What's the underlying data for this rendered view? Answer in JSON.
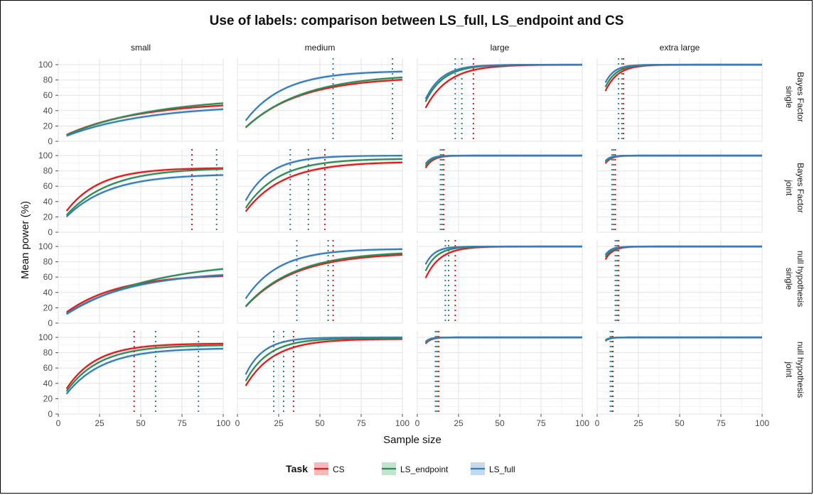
{
  "chart_data": {
    "type": "line",
    "title": "Use of labels: comparison between LS_full, LS_endpoint and CS",
    "xlabel": "Sample size",
    "ylabel": "Mean power (%)",
    "xlim": [
      0,
      100
    ],
    "ylim": [
      0,
      100
    ],
    "x_ticks": [
      0,
      25,
      50,
      75,
      100
    ],
    "y_ticks": [
      0,
      20,
      40,
      60,
      80,
      100
    ],
    "grid": true,
    "legend": {
      "title": "Task",
      "position": "bottom"
    },
    "columns": [
      "small",
      "medium",
      "large",
      "extra large"
    ],
    "rows": [
      {
        "label": "Bayes Factor\nsingle",
        "lines": [
          "Bayes Factor",
          "single"
        ]
      },
      {
        "label": "Bayes Factor\njoint",
        "lines": [
          "Bayes Factor",
          "joint"
        ]
      },
      {
        "label": "null hypothesis\nsingle",
        "lines": [
          "null hypothesis",
          "single"
        ]
      },
      {
        "label": "null hypothesis\njoint",
        "lines": [
          "null hypothesis",
          "joint"
        ]
      }
    ],
    "series": [
      {
        "name": "CS",
        "color": "#e41a1c",
        "fill": "#f4a6a7"
      },
      {
        "name": "LS_endpoint",
        "color": "#2e8b57",
        "fill": "#b3dcc2"
      },
      {
        "name": "LS_full",
        "color": "#377eb8",
        "fill": "#b4d0ea"
      }
    ],
    "x_start": 5,
    "panels": [
      [
        {
          "curves": {
            "CS": [
              52,
              45
            ],
            "LS_endpoint": [
              58,
              53
            ],
            "LS_full": [
              48,
              50
            ]
          },
          "vlines": {}
        },
        {
          "curves": {
            "CS": [
              84,
              33
            ],
            "LS_endpoint": [
              88,
              35
            ],
            "LS_full": [
              92,
              23
            ]
          },
          "vlines": {
            "LS_full": 58,
            "LS_endpoint": 94
          }
        },
        {
          "curves": {
            "CS": [
              100,
              14
            ],
            "LS_endpoint": [
              100,
              11
            ],
            "LS_full": [
              100,
              10
            ]
          },
          "vlines": {
            "LS_full": 23,
            "LS_endpoint": 27,
            "CS": 34
          }
        },
        {
          "curves": {
            "CS": [
              100,
              7.5
            ],
            "LS_endpoint": [
              100,
              6.5
            ],
            "LS_full": [
              100,
              5.5
            ]
          },
          "vlines": {
            "LS_full": 13,
            "LS_endpoint": 15,
            "CS": 16
          }
        }
      ],
      [
        {
          "curves": {
            "CS": [
              84,
              20
            ],
            "LS_endpoint": [
              84,
              26
            ],
            "LS_full": [
              76,
              26
            ]
          },
          "vlines": {
            "CS": 81,
            "LS_endpoint": 96
          }
        },
        {
          "curves": {
            "CS": [
              92,
              23
            ],
            "LS_endpoint": [
              96,
              20
            ],
            "LS_full": [
              100,
              15
            ]
          },
          "vlines": {
            "LS_full": 32,
            "LS_endpoint": 43,
            "CS": 53
          }
        },
        {
          "curves": {
            "CS": [
              100,
              4.4
            ],
            "LS_endpoint": [
              100,
              4
            ],
            "LS_full": [
              100,
              3.6
            ]
          },
          "vlines": {
            "LS_full": 14,
            "LS_endpoint": 15,
            "CS": 16
          }
        },
        {
          "curves": {
            "CS": [
              100,
              3.5
            ],
            "LS_endpoint": [
              100,
              3.2
            ],
            "LS_full": [
              100,
              3
            ]
          },
          "vlines": {
            "LS_full": 9,
            "LS_endpoint": 10,
            "CS": 11
          }
        }
      ],
      [
        {
          "curves": {
            "CS": [
              64,
              32
            ],
            "LS_endpoint": [
              82,
              52
            ],
            "LS_full": [
              68,
              40
            ]
          },
          "vlines": {}
        },
        {
          "curves": {
            "CS": [
              92,
              30
            ],
            "LS_endpoint": [
              94,
              30
            ],
            "LS_full": [
              97,
              20
            ]
          },
          "vlines": {
            "LS_full": 36,
            "LS_endpoint": 55,
            "CS": 58
          }
        },
        {
          "curves": {
            "CS": [
              100,
              9
            ],
            "LS_endpoint": [
              100,
              7
            ],
            "LS_full": [
              100,
              5.5
            ]
          },
          "vlines": {
            "LS_full": 17,
            "LS_endpoint": 19,
            "CS": 23
          }
        },
        {
          "curves": {
            "CS": [
              100,
              4.5
            ],
            "LS_endpoint": [
              100,
              4
            ],
            "LS_full": [
              100,
              3.6
            ]
          },
          "vlines": {
            "LS_full": 11,
            "LS_endpoint": 12,
            "CS": 13
          }
        }
      ],
      [
        {
          "curves": {
            "CS": [
              92,
              18
            ],
            "LS_endpoint": [
              90,
              20
            ],
            "LS_full": [
              86,
              22
            ]
          },
          "vlines": {
            "CS": 46,
            "LS_endpoint": 59,
            "LS_full": 85
          }
        },
        {
          "curves": {
            "CS": [
              98,
              17
            ],
            "LS_endpoint": [
              99,
              14
            ],
            "LS_full": [
              100,
              11
            ]
          },
          "vlines": {
            "LS_full": 22,
            "LS_endpoint": 28,
            "CS": 34
          }
        },
        {
          "curves": {
            "CS": [
              100,
              3.2
            ],
            "LS_endpoint": [
              100,
              3
            ],
            "LS_full": [
              100,
              2.8
            ]
          },
          "vlines": {
            "LS_full": 11,
            "LS_endpoint": 12,
            "CS": 13
          }
        },
        {
          "curves": {
            "CS": [
              100,
              2.6
            ],
            "LS_endpoint": [
              100,
              2.5
            ],
            "LS_full": [
              100,
              2.4
            ]
          },
          "vlines": {
            "LS_full": 8,
            "LS_endpoint": 9,
            "CS": 9.5
          }
        }
      ]
    ]
  }
}
